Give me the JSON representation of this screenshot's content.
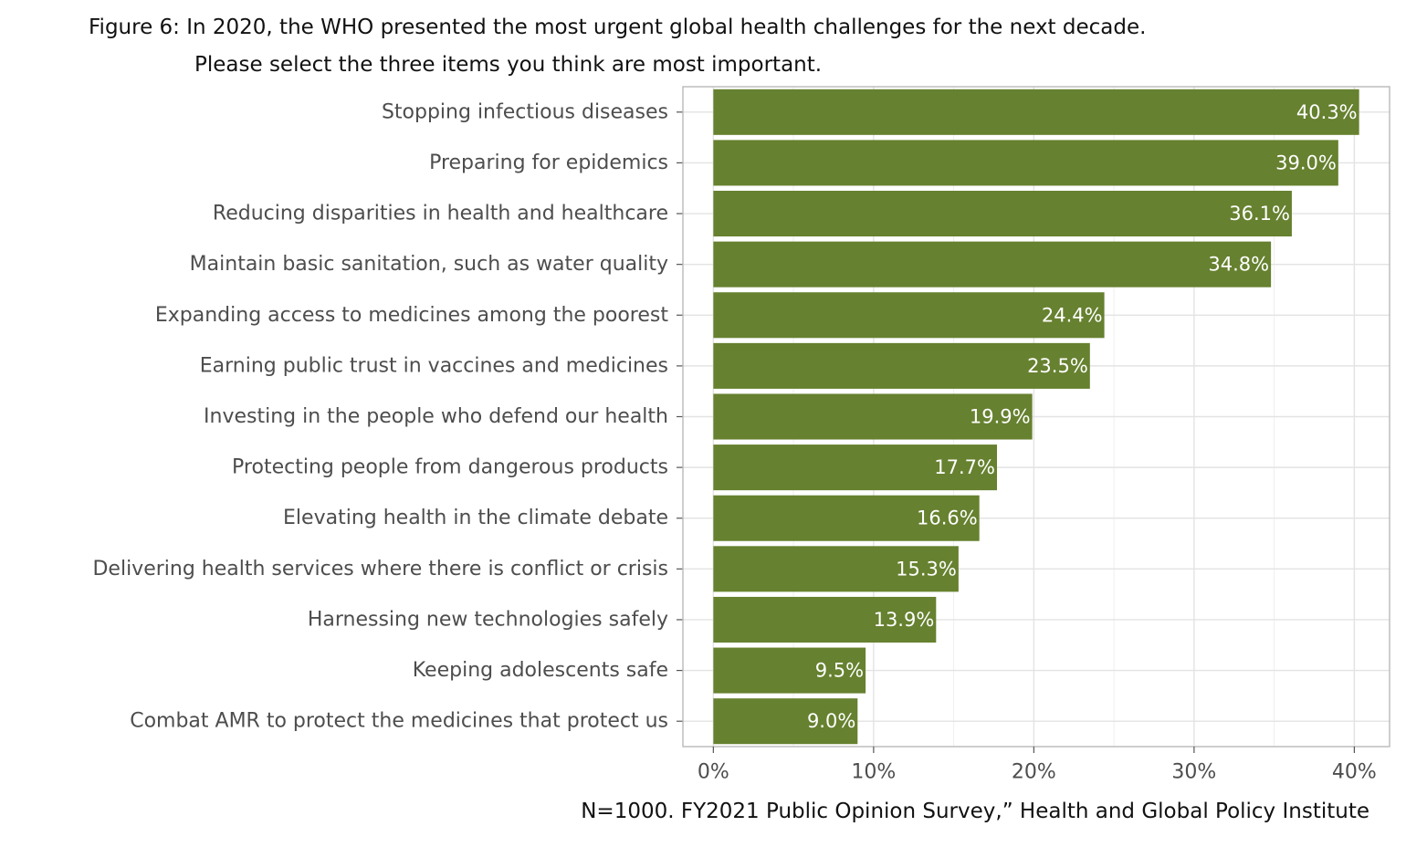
{
  "title": {
    "line1": "Figure 6: In 2020, the WHO presented the most urgent global health challenges for the next decade.",
    "line2": "Please select the three items you think are most important."
  },
  "caption": "N=1000. FY2021 Public Opinion Survey,” Health and Global Policy Institute",
  "colors": {
    "bar": "#66812f",
    "label": "#ffffff",
    "grid": "#e3e3e3",
    "frame": "#b9b9b9",
    "axis_text": "#4d4d4d"
  },
  "chart_data": {
    "type": "bar",
    "orientation": "horizontal",
    "categories": [
      "Stopping infectious diseases",
      "Preparing for epidemics",
      "Reducing disparities in health and healthcare",
      "Maintain basic sanitation, such as water quality",
      "Expanding access to medicines among the poorest",
      "Earning public trust in vaccines and medicines",
      "Investing in the people who defend our health",
      "Protecting people from dangerous products",
      "Elevating health in the climate debate",
      "Delivering health services where there is conflict or crisis",
      "Harnessing new technologies safely",
      "Keeping adolescents safe",
      "Combat AMR to protect the medicines that protect us"
    ],
    "values": [
      40.3,
      39.0,
      36.1,
      34.8,
      24.4,
      23.5,
      19.9,
      17.7,
      16.6,
      15.3,
      13.9,
      9.5,
      9.0
    ],
    "data_labels": [
      "40.3%",
      "39.0%",
      "36.1%",
      "34.8%",
      "24.4%",
      "23.5%",
      "19.9%",
      "17.7%",
      "16.6%",
      "15.3%",
      "13.9%",
      "9.5%",
      "9.0%"
    ],
    "x_ticks": [
      0,
      10,
      20,
      30,
      40
    ],
    "x_tick_labels": [
      "0%",
      "10%",
      "20%",
      "30%",
      "40%"
    ],
    "xlim": [
      -1.9,
      42.2
    ],
    "grid": true,
    "xlabel": "",
    "ylabel": ""
  }
}
